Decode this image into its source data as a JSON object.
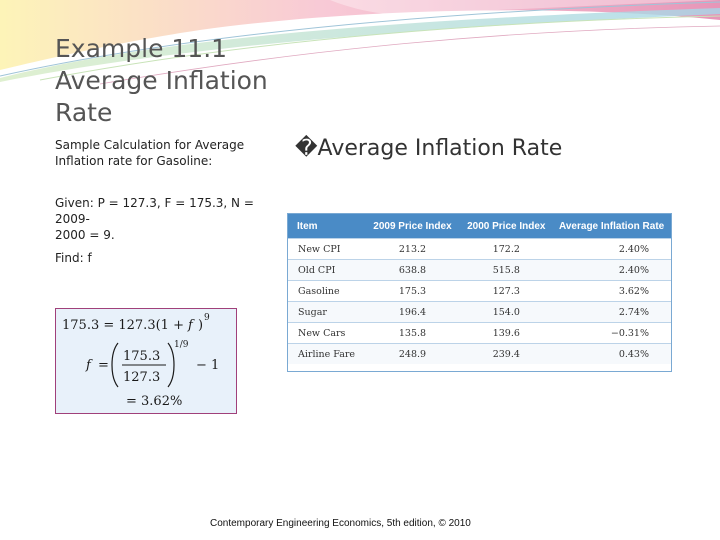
{
  "slide": {
    "title_lines": [
      "Example 11.1",
      "Average Inflation",
      "Rate"
    ],
    "subtitle_lines": [
      "Sample Calculation for Average",
      "Inflation rate for Gasoline:"
    ],
    "right_heading": "�Average Inflation Rate",
    "given_lines": [
      "Given: P = 127.3, F = 175.3, N = 2009-",
      "2000 = 9."
    ],
    "find": "Find: f",
    "formula": {
      "line1_lhs": "175.3 = 127.3(1 +",
      "line1_var": "f",
      "line1_rhs": ")",
      "line1_exp": "9",
      "line2_lhs": "f",
      "line2_eq": "=",
      "frac_num": "175.3",
      "frac_den": "127.3",
      "line2_exp": "1/9",
      "line2_minus": "− 1",
      "line3": "= 3.62%"
    },
    "footer": "Contemporary Engineering Economics, 5th edition, © 2010",
    "colors": {
      "table_header": "#4a8bc6",
      "formula_border": "#a0407a",
      "formula_bg": "#e8f1fa"
    }
  },
  "table": {
    "headers": [
      "Item",
      "2009 Price Index",
      "2000 Price Index",
      "Average Inflation Rate"
    ],
    "rows": [
      [
        "New CPI",
        "213.2",
        "172.2",
        "2.40%"
      ],
      [
        "Old CPI",
        "638.8",
        "515.8",
        "2.40%"
      ],
      [
        "Gasoline",
        "175.3",
        "127.3",
        "3.62%"
      ],
      [
        "Sugar",
        "196.4",
        "154.0",
        "2.74%"
      ],
      [
        "New Cars",
        "135.8",
        "139.6",
        "−0.31%"
      ],
      [
        "Airline Fare",
        "248.9",
        "239.4",
        "0.43%"
      ]
    ]
  }
}
